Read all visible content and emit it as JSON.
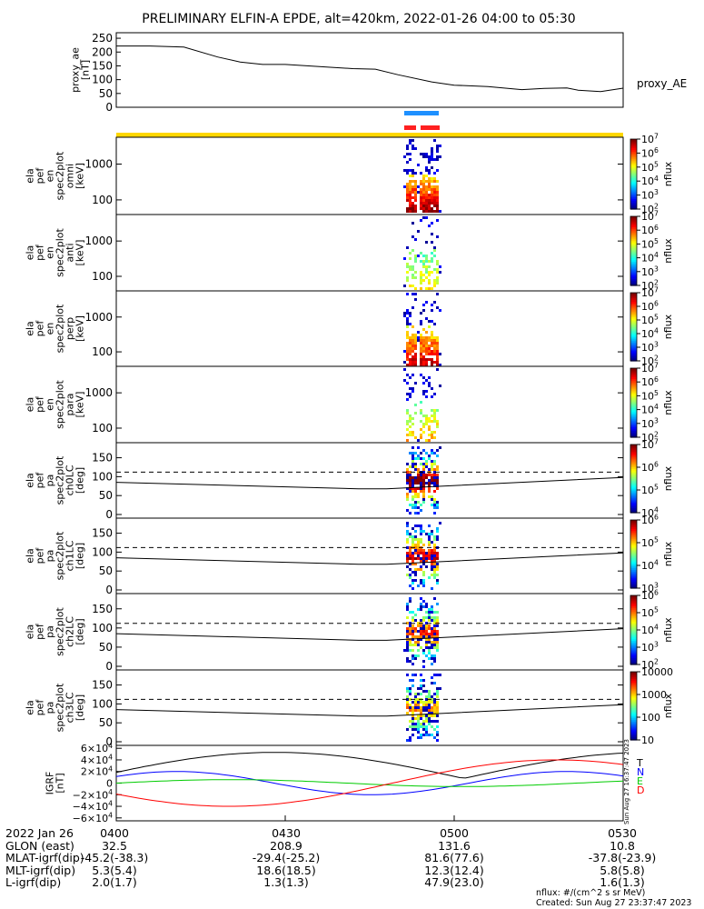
{
  "title": "PRELIMINARY ELFIN-A EPDE, alt=420km, 2022-01-26 04:00 to 05:30",
  "chart_data": [
    {
      "type": "line",
      "panel": "proxy_ae",
      "ylabel_lines": [
        "proxy_ae",
        "[nT]"
      ],
      "right_label": "proxy_AE",
      "ylim": [
        0,
        270
      ],
      "yticks": [
        "0",
        "50",
        "100",
        "150",
        "200",
        "250"
      ],
      "x_minutes": [
        0,
        6,
        12,
        18,
        22,
        26,
        30,
        38,
        42,
        46,
        50,
        56,
        60,
        66,
        72,
        76,
        80,
        82,
        86,
        90
      ],
      "y": [
        222,
        222,
        218,
        182,
        164,
        155,
        155,
        145,
        140,
        138,
        118,
        92,
        80,
        75,
        64,
        68,
        70,
        62,
        57,
        69
      ]
    },
    {
      "type": "heatmap",
      "panel": "ela pef en spec2plot omni",
      "ylabel_lines": [
        "ela",
        "pef",
        "en",
        "spec2plot",
        "omni",
        "[keV]"
      ],
      "yticks": [
        "100",
        "1000"
      ],
      "colorbar_ticks": [
        "10^2",
        "10^3",
        "10^4",
        "10^5",
        "10^6",
        "10^7"
      ],
      "colorbar_label": "nflux"
    },
    {
      "type": "heatmap",
      "panel": "ela pef en spec2plot anti",
      "ylabel_lines": [
        "ela",
        "pef",
        "en",
        "spec2plot",
        "anti",
        "[keV]"
      ],
      "yticks": [
        "100",
        "1000"
      ],
      "colorbar_ticks": [
        "10^2",
        "10^3",
        "10^4",
        "10^5",
        "10^6",
        "10^7"
      ],
      "colorbar_label": "nflux"
    },
    {
      "type": "heatmap",
      "panel": "ela pef en spec2plot perp",
      "ylabel_lines": [
        "ela",
        "pef",
        "en",
        "spec2plot",
        "perp",
        "[keV]"
      ],
      "yticks": [
        "100",
        "1000"
      ],
      "colorbar_ticks": [
        "10^2",
        "10^3",
        "10^4",
        "10^5",
        "10^6",
        "10^7"
      ],
      "colorbar_label": "nflux"
    },
    {
      "type": "heatmap",
      "panel": "ela pef en spec2plot para",
      "ylabel_lines": [
        "ela",
        "pef",
        "en",
        "spec2plot",
        "para",
        "[keV]"
      ],
      "yticks": [
        "100",
        "1000"
      ],
      "colorbar_ticks": [
        "10^2",
        "10^3",
        "10^4",
        "10^5",
        "10^6",
        "10^7"
      ],
      "colorbar_label": "nflux"
    },
    {
      "type": "heatmap",
      "panel": "ela pef pa spec2plot ch0LC",
      "ylabel_lines": [
        "ela",
        "pef",
        "pa",
        "spec2plot",
        "ch0LC",
        "[deg]"
      ],
      "yticks": [
        "0",
        "50",
        "100",
        "150"
      ],
      "colorbar_ticks": [
        "10^4",
        "10^5",
        "10^6",
        "10^7"
      ],
      "colorbar_label": "nflux"
    },
    {
      "type": "heatmap",
      "panel": "ela pef pa spec2plot ch1LC",
      "ylabel_lines": [
        "ela",
        "pef",
        "pa",
        "spec2plot",
        "ch1LC",
        "[deg]"
      ],
      "yticks": [
        "0",
        "50",
        "100",
        "150"
      ],
      "colorbar_ticks": [
        "10^3",
        "10^4",
        "10^5",
        "10^6"
      ],
      "colorbar_label": "nflux"
    },
    {
      "type": "heatmap",
      "panel": "ela pef pa spec2plot ch2LC",
      "ylabel_lines": [
        "ela",
        "pef",
        "pa",
        "spec2plot",
        "ch2LC",
        "[deg]"
      ],
      "yticks": [
        "0",
        "50",
        "100",
        "150"
      ],
      "colorbar_ticks": [
        "10^2",
        "10^3",
        "10^4",
        "10^5",
        "10^6"
      ],
      "colorbar_label": "nflux"
    },
    {
      "type": "heatmap",
      "panel": "ela pef pa spec2plot ch3LC",
      "ylabel_lines": [
        "ela",
        "pef",
        "pa",
        "spec2plot",
        "ch3LC",
        "[deg]"
      ],
      "yticks": [
        "0",
        "50",
        "100",
        "150"
      ],
      "colorbar_ticks": [
        "10",
        "100",
        "1000",
        "10000"
      ],
      "colorbar_label": "nflux"
    },
    {
      "type": "line",
      "panel": "IGRF",
      "ylabel_lines": [
        "IGRF",
        "[nT]"
      ],
      "yticks": [
        "−6×10^4",
        "−4×10^4",
        "−2×10^4",
        "0",
        "2×10^4",
        "4×10^4",
        "6×10^4"
      ],
      "ylim": [
        -65000,
        65000
      ],
      "series": [
        {
          "name": "T",
          "color": "#000000"
        },
        {
          "name": "N",
          "color": "#0000ff"
        },
        {
          "name": "E",
          "color": "#00cc00"
        },
        {
          "name": "D",
          "color": "#ff0000"
        }
      ],
      "side_text": "Sun Aug 27 16:37:47 2023"
    }
  ],
  "xaxis": {
    "ticks": [
      "0400",
      "0430",
      "0500",
      "0530"
    ],
    "rows": [
      {
        "label": "2022 Jan 26",
        "values": [
          "0400",
          "0430",
          "0500",
          "0530"
        ]
      },
      {
        "label": "GLON (east)",
        "values": [
          "32.5",
          "208.9",
          "131.6",
          "10.8"
        ]
      },
      {
        "label": "MLAT-igrf(dip)",
        "values": [
          "-45.2(-38.3)",
          "-29.4(-25.2)",
          "81.6(77.6)",
          "-37.8(-23.9)"
        ]
      },
      {
        "label": "MLT-igrf(dip)",
        "values": [
          "5.3(5.4)",
          "18.6(18.5)",
          "12.3(12.4)",
          "5.8(5.8)"
        ]
      },
      {
        "label": "L-igrf(dip)",
        "values": [
          "2.0(1.7)",
          "1.3(1.3)",
          "47.9(23.0)",
          "1.6(1.3)"
        ]
      }
    ]
  },
  "footnote": {
    "units": "nflux: #/(cm^2 s sr MeV)",
    "created": "Created: Sun Aug 27 23:37:47 2023"
  }
}
